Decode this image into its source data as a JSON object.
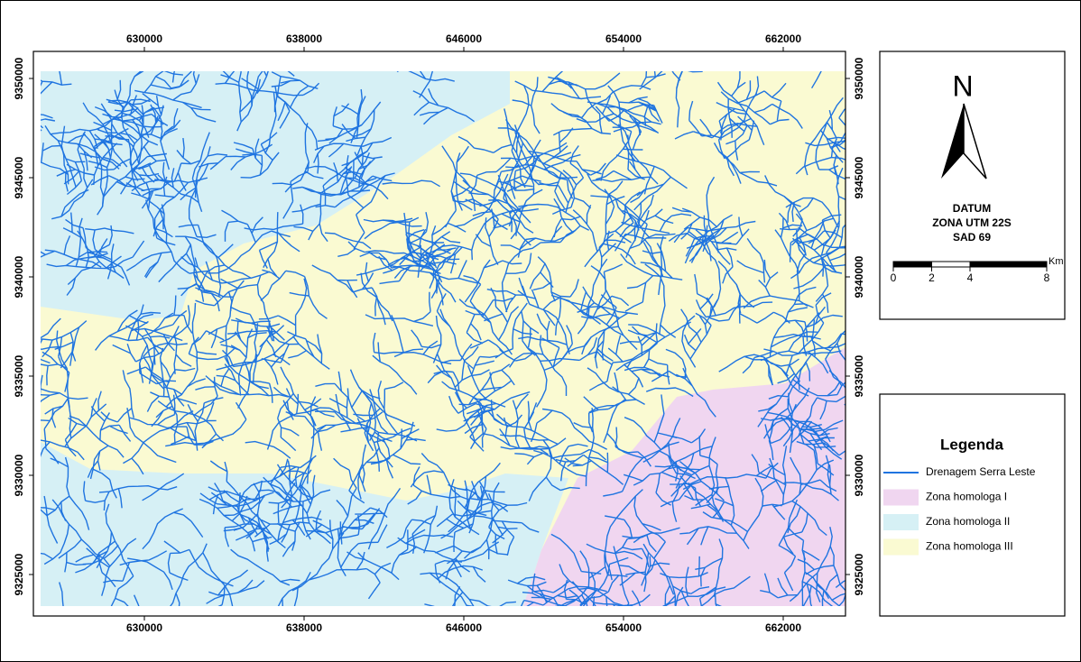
{
  "map": {
    "xlim": [
      624441,
      665119
    ],
    "xticks": [
      630000,
      638000,
      646000,
      654000,
      662000
    ],
    "ylim": [
      9322909,
      9351364
    ],
    "yticks": [
      9325000,
      9330000,
      9335000,
      9340000,
      9345000,
      9350000
    ]
  },
  "north_arrow": {
    "label": "N"
  },
  "datum": [
    "DATUM",
    "ZONA UTM 22S",
    "SAD 69"
  ],
  "scale_bar": {
    "ticks": [
      0,
      2,
      4,
      8
    ],
    "unit": "Km"
  },
  "legend": {
    "title": "Legenda",
    "items": [
      {
        "label": "Drenagem Serra Leste",
        "color": "#1f74e0",
        "type": "line"
      },
      {
        "label": "Zona homologa I",
        "color": "#f0d6f0",
        "type": "fill"
      },
      {
        "label": "Zona homologa II",
        "color": "#d6f0f5",
        "type": "fill"
      },
      {
        "label": "Zona homologa III",
        "color": "#fafad2",
        "type": "fill"
      }
    ]
  }
}
